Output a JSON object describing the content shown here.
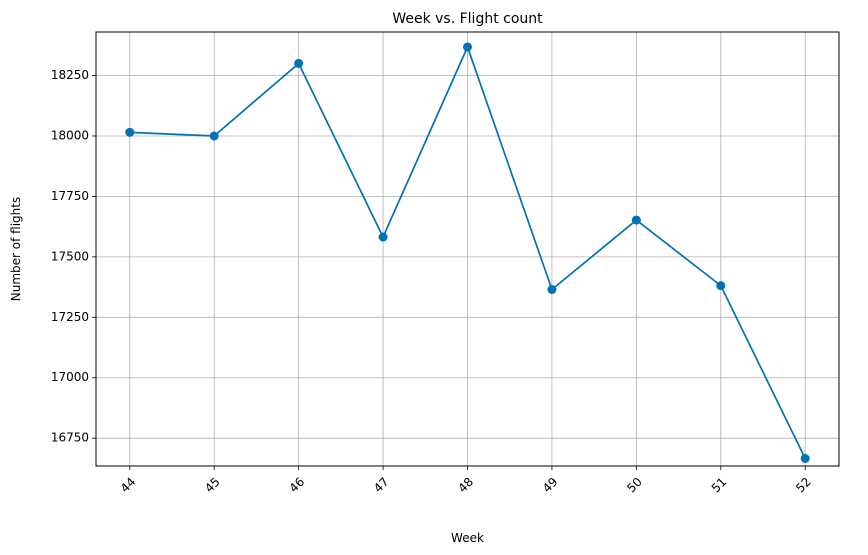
{
  "chart_data": {
    "type": "line",
    "title": "Week vs. Flight count",
    "xlabel": "Week",
    "ylabel": "Number of flights",
    "x": [
      44,
      45,
      46,
      47,
      48,
      49,
      50,
      51,
      52
    ],
    "series": [
      {
        "values": [
          18015,
          18000,
          18300,
          17582,
          18368,
          17365,
          17652,
          17381,
          16666
        ],
        "color": "#0072b2",
        "marker": "circle"
      }
    ],
    "xlim": [
      43.6,
      52.4
    ],
    "ylim": [
      16635,
      18430
    ],
    "yticks": [
      16750,
      17000,
      17250,
      17500,
      17750,
      18000,
      18250
    ],
    "grid": true,
    "legend": "none",
    "xtick_rotation": 45
  }
}
